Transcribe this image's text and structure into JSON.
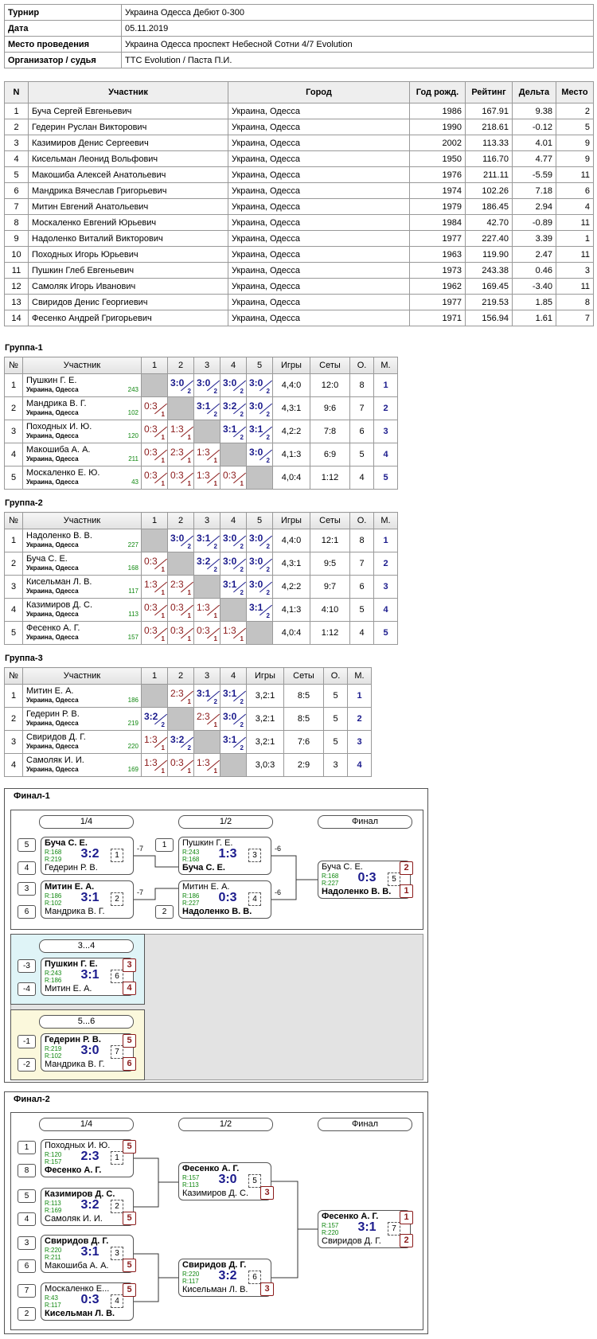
{
  "info": {
    "rows": [
      [
        "Турнир",
        "Украина Одесса Дебют 0-300"
      ],
      [
        "Дата",
        "05.11.2019"
      ],
      [
        "Место проведения",
        "Украина Одесса проспект Небесной Сотни 4/7 Evolution"
      ],
      [
        "Организатор / судья",
        "TTC Evolution / Паста П.И."
      ]
    ]
  },
  "participants": {
    "header": [
      "N",
      "Участник",
      "Город",
      "Год рожд.",
      "Рейтинг",
      "Дельта",
      "Место"
    ],
    "rows": [
      [
        "1",
        "Буча Сергей Евгеньевич",
        "Украина, Одесса",
        "1986",
        "167.91",
        "9.38",
        "2"
      ],
      [
        "2",
        "Гедерин Руслан Викторович",
        "Украина, Одесса",
        "1990",
        "218.61",
        "-0.12",
        "5"
      ],
      [
        "3",
        "Казимиров Денис Сергеевич",
        "Украина, Одесса",
        "2002",
        "113.33",
        "4.01",
        "9"
      ],
      [
        "4",
        "Кисельман Леонид Вольфович",
        "Украина, Одесса",
        "1950",
        "116.70",
        "4.77",
        "9"
      ],
      [
        "5",
        "Макошиба Алексей Анатольевич",
        "Украина, Одесса",
        "1976",
        "211.11",
        "-5.59",
        "11"
      ],
      [
        "6",
        "Мандрика Вячеслав Григорьевич",
        "Украина, Одесса",
        "1974",
        "102.26",
        "7.18",
        "6"
      ],
      [
        "7",
        "Митин Евгений Анатольевич",
        "Украина, Одесса",
        "1979",
        "186.45",
        "2.94",
        "4"
      ],
      [
        "8",
        "Москаленко Евгений Юрьевич",
        "Украина, Одесса",
        "1984",
        "42.70",
        "-0.89",
        "11"
      ],
      [
        "9",
        "Надоленко Виталий Викторович",
        "Украина, Одесса",
        "1977",
        "227.40",
        "3.39",
        "1"
      ],
      [
        "10",
        "Походных Игорь Юрьевич",
        "Украина, Одесса",
        "1963",
        "119.90",
        "2.47",
        "11"
      ],
      [
        "11",
        "Пушкин Глеб Евгеньевич",
        "Украина, Одесса",
        "1973",
        "243.38",
        "0.46",
        "3"
      ],
      [
        "12",
        "Самоляк Игорь Иванович",
        "Украина, Одесса",
        "1962",
        "169.45",
        "-3.40",
        "11"
      ],
      [
        "13",
        "Свиридов Денис Георгиевич",
        "Украина, Одесса",
        "1977",
        "219.53",
        "1.85",
        "8"
      ],
      [
        "14",
        "Фесенко Андрей Григорьевич",
        "Украина, Одесса",
        "1971",
        "156.94",
        "1.61",
        "7"
      ]
    ]
  },
  "groups": [
    {
      "title": "Группа-1",
      "header": [
        "№",
        "Участник",
        "1",
        "2",
        "3",
        "4",
        "5",
        "Игры",
        "Сеты",
        "О.",
        "М."
      ],
      "rows": [
        {
          "num": 1,
          "name": "Пушкин Г. Е.",
          "city": "Украина, Одесса",
          "rating": 243,
          "results": [
            null,
            {
              "score": "3:0",
              "points": 2
            },
            {
              "score": "3:0",
              "points": 2
            },
            {
              "score": "3:0",
              "points": 2
            },
            {
              "score": "3:0",
              "points": 2
            }
          ],
          "games": "4,4:0",
          "sets": "12:0",
          "points": 8,
          "place": 1
        },
        {
          "num": 2,
          "name": "Мандрика В. Г.",
          "city": "Украина, Одесса",
          "rating": 102,
          "results": [
            {
              "score": "0:3",
              "points": 1
            },
            null,
            {
              "score": "3:1",
              "points": 2
            },
            {
              "score": "3:2",
              "points": 2
            },
            {
              "score": "3:0",
              "points": 2
            }
          ],
          "games": "4,3:1",
          "sets": "9:6",
          "points": 7,
          "place": 2
        },
        {
          "num": 3,
          "name": "Походных И. Ю.",
          "city": "Украина, Одесса",
          "rating": 120,
          "results": [
            {
              "score": "0:3",
              "points": 1
            },
            {
              "score": "1:3",
              "points": 1
            },
            null,
            {
              "score": "3:1",
              "points": 2
            },
            {
              "score": "3:1",
              "points": 2
            }
          ],
          "games": "4,2:2",
          "sets": "7:8",
          "points": 6,
          "place": 3
        },
        {
          "num": 4,
          "name": "Макошиба А. А.",
          "city": "Украина, Одесса",
          "rating": 211,
          "results": [
            {
              "score": "0:3",
              "points": 1
            },
            {
              "score": "2:3",
              "points": 1
            },
            {
              "score": "1:3",
              "points": 1
            },
            null,
            {
              "score": "3:0",
              "points": 2
            }
          ],
          "games": "4,1:3",
          "sets": "6:9",
          "points": 5,
          "place": 4
        },
        {
          "num": 5,
          "name": "Москаленко Е. Ю.",
          "city": "Украина, Одесса",
          "rating": 43,
          "results": [
            {
              "score": "0:3",
              "points": 1
            },
            {
              "score": "0:3",
              "points": 1
            },
            {
              "score": "1:3",
              "points": 1
            },
            {
              "score": "0:3",
              "points": 1
            },
            null
          ],
          "games": "4,0:4",
          "sets": "1:12",
          "points": 4,
          "place": 5
        }
      ]
    },
    {
      "title": "Группа-2",
      "header": [
        "№",
        "Участник",
        "1",
        "2",
        "3",
        "4",
        "5",
        "Игры",
        "Сеты",
        "О.",
        "М."
      ],
      "rows": [
        {
          "num": 1,
          "name": "Надоленко В. В.",
          "city": "Украина, Одесса",
          "rating": 227,
          "results": [
            null,
            {
              "score": "3:0",
              "points": 2
            },
            {
              "score": "3:1",
              "points": 2
            },
            {
              "score": "3:0",
              "points": 2
            },
            {
              "score": "3:0",
              "points": 2
            }
          ],
          "games": "4,4:0",
          "sets": "12:1",
          "points": 8,
          "place": 1
        },
        {
          "num": 2,
          "name": "Буча С. Е.",
          "city": "Украина, Одесса",
          "rating": 168,
          "results": [
            {
              "score": "0:3",
              "points": 1
            },
            null,
            {
              "score": "3:2",
              "points": 2
            },
            {
              "score": "3:0",
              "points": 2
            },
            {
              "score": "3:0",
              "points": 2
            }
          ],
          "games": "4,3:1",
          "sets": "9:5",
          "points": 7,
          "place": 2
        },
        {
          "num": 3,
          "name": "Кисельман Л. В.",
          "city": "Украина, Одесса",
          "rating": 117,
          "results": [
            {
              "score": "1:3",
              "points": 1
            },
            {
              "score": "2:3",
              "points": 1
            },
            null,
            {
              "score": "3:1",
              "points": 2
            },
            {
              "score": "3:0",
              "points": 2
            }
          ],
          "games": "4,2:2",
          "sets": "9:7",
          "points": 6,
          "place": 3
        },
        {
          "num": 4,
          "name": "Казимиров Д. С.",
          "city": "Украина, Одесса",
          "rating": 113,
          "results": [
            {
              "score": "0:3",
              "points": 1
            },
            {
              "score": "0:3",
              "points": 1
            },
            {
              "score": "1:3",
              "points": 1
            },
            null,
            {
              "score": "3:1",
              "points": 2
            }
          ],
          "games": "4,1:3",
          "sets": "4:10",
          "points": 5,
          "place": 4
        },
        {
          "num": 5,
          "name": "Фесенко А. Г.",
          "city": "Украина, Одесса",
          "rating": 157,
          "results": [
            {
              "score": "0:3",
              "points": 1
            },
            {
              "score": "0:3",
              "points": 1
            },
            {
              "score": "0:3",
              "points": 1
            },
            {
              "score": "1:3",
              "points": 1
            },
            null
          ],
          "games": "4,0:4",
          "sets": "1:12",
          "points": 4,
          "place": 5
        }
      ]
    },
    {
      "title": "Группа-3",
      "header": [
        "№",
        "Участник",
        "1",
        "2",
        "3",
        "4",
        "Игры",
        "Сеты",
        "О.",
        "М."
      ],
      "rows": [
        {
          "num": 1,
          "name": "Митин Е. А.",
          "city": "Украина, Одесса",
          "rating": 186,
          "results": [
            null,
            {
              "score": "2:3",
              "points": 1
            },
            {
              "score": "3:1",
              "points": 2
            },
            {
              "score": "3:1",
              "points": 2
            }
          ],
          "games": "3,2:1",
          "sets": "8:5",
          "points": 5,
          "place": 1
        },
        {
          "num": 2,
          "name": "Гедерин Р. В.",
          "city": "Украина, Одесса",
          "rating": 219,
          "results": [
            {
              "score": "3:2",
              "points": 2
            },
            null,
            {
              "score": "2:3",
              "points": 1
            },
            {
              "score": "3:0",
              "points": 2
            }
          ],
          "games": "3,2:1",
          "sets": "8:5",
          "points": 5,
          "place": 2
        },
        {
          "num": 3,
          "name": "Свиридов Д. Г.",
          "city": "Украина, Одесса",
          "rating": 220,
          "results": [
            {
              "score": "1:3",
              "points": 1
            },
            {
              "score": "3:2",
              "points": 2
            },
            null,
            {
              "score": "3:1",
              "points": 2
            }
          ],
          "games": "3,2:1",
          "sets": "7:6",
          "points": 5,
          "place": 3
        },
        {
          "num": 4,
          "name": "Самоляк И. И.",
          "city": "Украина, Одесса",
          "rating": 169,
          "results": [
            {
              "score": "1:3",
              "points": 1
            },
            {
              "score": "0:3",
              "points": 1
            },
            {
              "score": "1:3",
              "points": 1
            },
            null
          ],
          "games": "3,0:3",
          "sets": "2:9",
          "points": 3,
          "place": 4
        }
      ]
    }
  ],
  "finals": [
    {
      "title": "Финал-1",
      "rounds": [
        "1/4",
        "1/2",
        "Финал"
      ],
      "matches": [
        {
          "p1": {
            "seed": 5,
            "name": "Буча С. Е.",
            "rating": "R:168"
          },
          "p2": {
            "seed": 4,
            "name": "Гедерин Р. В.",
            "rating": "R:219"
          },
          "score": "3:2",
          "number": 1,
          "winner": 1,
          "next": -7
        },
        {
          "p1": {
            "seed": 3,
            "name": "Митин Е. А.",
            "rating": "R:186"
          },
          "p2": {
            "seed": 6,
            "name": "Мандрика В. Г.",
            "rating": "R:102"
          },
          "score": "3:1",
          "number": 2,
          "winner": 1,
          "next": -7
        },
        {
          "p1": {
            "seed": 1,
            "name": "Пушкин Г. Е.",
            "rating": "R:243"
          },
          "p2": {
            "name": "Буча С. Е.",
            "rating": "R:168"
          },
          "score": "1:3",
          "number": 3,
          "winner": 2,
          "next": -6
        },
        {
          "p1": {
            "name": "Митин Е. А.",
            "rating": "R:186"
          },
          "p2": {
            "seed": 2,
            "name": "Надоленко В. В.",
            "rating": "R:227"
          },
          "score": "0:3",
          "number": 4,
          "winner": 2,
          "next": -6
        },
        {
          "p1": {
            "name": "Буча С. Е.",
            "rating": "R:168",
            "place": 2
          },
          "p2": {
            "name": "Надоленко В. В.",
            "rating": "R:227",
            "place": 1
          },
          "score": "0:3",
          "number": 5,
          "winner": 2
        }
      ],
      "classification": [
        {
          "title": "3...4",
          "match": {
            "p1": {
              "seed": -3,
              "name": "Пушкин Г. Е.",
              "rating": "R:243",
              "place": 3
            },
            "p2": {
              "seed": -4,
              "name": "Митин Е. А.",
              "rating": "R:186",
              "place": 4
            },
            "score": "3:1",
            "number": 6,
            "winner": 1
          }
        },
        {
          "title": "5...6",
          "match": {
            "p1": {
              "seed": -1,
              "name": "Гедерин Р. В.",
              "rating": "R:219",
              "place": 5
            },
            "p2": {
              "seed": -2,
              "name": "Мандрика В. Г.",
              "rating": "R:102",
              "place": 6
            },
            "score": "3:0",
            "number": 7,
            "winner": 1
          }
        }
      ]
    },
    {
      "title": "Финал-2",
      "rounds": [
        "1/4",
        "1/2",
        "Финал"
      ],
      "matches": [
        {
          "p1": {
            "seed": 1,
            "name": "Походных И. Ю.",
            "rating": "R:120",
            "place": 5
          },
          "p2": {
            "seed": 8,
            "name": "Фесенко А. Г.",
            "rating": "R:157"
          },
          "score": "2:3",
          "number": 1,
          "winner": 2
        },
        {
          "p1": {
            "seed": 5,
            "name": "Казимиров Д. С.",
            "rating": "R:113"
          },
          "p2": {
            "seed": 4,
            "name": "Самоляк И. И.",
            "rating": "R:169",
            "place": 5
          },
          "score": "3:2",
          "number": 2,
          "winner": 1
        },
        {
          "p1": {
            "seed": 3,
            "name": "Свиридов Д. Г.",
            "rating": "R:220"
          },
          "p2": {
            "seed": 6,
            "name": "Макошиба А. А.",
            "rating": "R:211",
            "place": 5
          },
          "score": "3:1",
          "number": 3,
          "winner": 1
        },
        {
          "p1": {
            "seed": 7,
            "name": "Москаленко Е...",
            "rating": "R:43",
            "place": 5
          },
          "p2": {
            "seed": 2,
            "name": "Кисельман Л. В.",
            "rating": "R:117"
          },
          "score": "0:3",
          "number": 4,
          "winner": 2
        },
        {
          "p1": {
            "name": "Фесенко А. Г.",
            "rating": "R:157"
          },
          "p2": {
            "name": "Казимиров Д. С.",
            "rating": "R:113",
            "place": 3
          },
          "score": "3:0",
          "number": 5,
          "winner": 1
        },
        {
          "p1": {
            "name": "Свиридов Д. Г.",
            "rating": "R:220"
          },
          "p2": {
            "name": "Кисельман Л. В.",
            "rating": "R:117",
            "place": 3
          },
          "score": "3:2",
          "number": 6,
          "winner": 1
        },
        {
          "p1": {
            "name": "Фесенко А. Г.",
            "rating": "R:157",
            "place": 1
          },
          "p2": {
            "name": "Свиридов Д. Г.",
            "rating": "R:220",
            "place": 2
          },
          "score": "3:1",
          "number": 7,
          "winner": 1
        }
      ]
    }
  ]
}
